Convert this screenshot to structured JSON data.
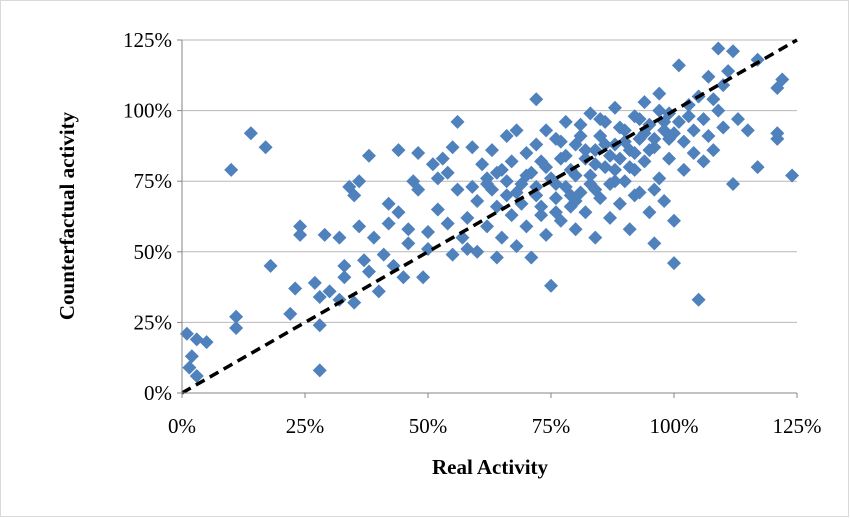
{
  "chart_data": {
    "type": "scatter",
    "xlabel": "Real Activity",
    "ylabel": "Counterfactual activity",
    "xlim": [
      0,
      1.25
    ],
    "ylim": [
      0,
      1.25
    ],
    "x_ticks": [
      "0%",
      "25%",
      "50%",
      "75%",
      "100%",
      "125%"
    ],
    "y_ticks": [
      "0%",
      "25%",
      "50%",
      "75%",
      "100%",
      "125%"
    ],
    "grid": "horizontal",
    "legend": "none",
    "colors": {
      "marker": "#4f81bd",
      "reference_line": "#000000",
      "grid": "#b8b8b8",
      "axis": "#868686"
    },
    "reference_line": {
      "style": "dashed",
      "from": [
        0,
        0
      ],
      "to": [
        1.25,
        1.25
      ]
    },
    "points": [
      [
        0.01,
        0.21
      ],
      [
        0.03,
        0.19
      ],
      [
        0.02,
        0.13
      ],
      [
        0.015,
        0.09
      ],
      [
        0.03,
        0.06
      ],
      [
        0.05,
        0.18
      ],
      [
        0.1,
        0.79
      ],
      [
        0.11,
        0.27
      ],
      [
        0.11,
        0.23
      ],
      [
        0.14,
        0.92
      ],
      [
        0.17,
        0.87
      ],
      [
        0.18,
        0.45
      ],
      [
        0.22,
        0.28
      ],
      [
        0.23,
        0.37
      ],
      [
        0.24,
        0.59
      ],
      [
        0.24,
        0.56
      ],
      [
        0.27,
        0.39
      ],
      [
        0.28,
        0.34
      ],
      [
        0.28,
        0.24
      ],
      [
        0.28,
        0.08
      ],
      [
        0.29,
        0.56
      ],
      [
        0.3,
        0.36
      ],
      [
        0.32,
        0.33
      ],
      [
        0.33,
        0.41
      ],
      [
        0.32,
        0.55
      ],
      [
        0.33,
        0.45
      ],
      [
        0.34,
        0.73
      ],
      [
        0.35,
        0.7
      ],
      [
        0.35,
        0.32
      ],
      [
        0.36,
        0.75
      ],
      [
        0.36,
        0.59
      ],
      [
        0.37,
        0.47
      ],
      [
        0.38,
        0.43
      ],
      [
        0.38,
        0.84
      ],
      [
        0.39,
        0.55
      ],
      [
        0.4,
        0.36
      ],
      [
        0.41,
        0.49
      ],
      [
        0.42,
        0.6
      ],
      [
        0.42,
        0.67
      ],
      [
        0.43,
        0.45
      ],
      [
        0.44,
        0.86
      ],
      [
        0.44,
        0.64
      ],
      [
        0.45,
        0.41
      ],
      [
        0.46,
        0.53
      ],
      [
        0.46,
        0.58
      ],
      [
        0.47,
        0.75
      ],
      [
        0.48,
        0.85
      ],
      [
        0.48,
        0.72
      ],
      [
        0.49,
        0.41
      ],
      [
        0.5,
        0.57
      ],
      [
        0.5,
        0.51
      ],
      [
        0.51,
        0.81
      ],
      [
        0.52,
        0.76
      ],
      [
        0.52,
        0.65
      ],
      [
        0.53,
        0.83
      ],
      [
        0.54,
        0.78
      ],
      [
        0.54,
        0.6
      ],
      [
        0.55,
        0.49
      ],
      [
        0.55,
        0.87
      ],
      [
        0.56,
        0.96
      ],
      [
        0.56,
        0.72
      ],
      [
        0.57,
        0.55
      ],
      [
        0.58,
        0.62
      ],
      [
        0.58,
        0.51
      ],
      [
        0.59,
        0.87
      ],
      [
        0.59,
        0.73
      ],
      [
        0.6,
        0.68
      ],
      [
        0.6,
        0.5
      ],
      [
        0.61,
        0.81
      ],
      [
        0.62,
        0.76
      ],
      [
        0.62,
        0.59
      ],
      [
        0.63,
        0.72
      ],
      [
        0.63,
        0.86
      ],
      [
        0.64,
        0.66
      ],
      [
        0.64,
        0.48
      ],
      [
        0.65,
        0.79
      ],
      [
        0.65,
        0.55
      ],
      [
        0.66,
        0.7
      ],
      [
        0.66,
        0.91
      ],
      [
        0.67,
        0.63
      ],
      [
        0.67,
        0.82
      ],
      [
        0.68,
        0.52
      ],
      [
        0.68,
        0.93
      ],
      [
        0.69,
        0.74
      ],
      [
        0.69,
        0.67
      ],
      [
        0.7,
        0.85
      ],
      [
        0.7,
        0.59
      ],
      [
        0.71,
        0.78
      ],
      [
        0.71,
        0.48
      ],
      [
        0.72,
        0.88
      ],
      [
        0.72,
        1.04
      ],
      [
        0.72,
        0.7
      ],
      [
        0.73,
        0.63
      ],
      [
        0.73,
        0.82
      ],
      [
        0.74,
        0.93
      ],
      [
        0.74,
        0.56
      ],
      [
        0.75,
        0.76
      ],
      [
        0.75,
        0.38
      ],
      [
        0.76,
        0.69
      ],
      [
        0.76,
        0.9
      ],
      [
        0.77,
        0.83
      ],
      [
        0.77,
        0.61
      ],
      [
        0.78,
        0.96
      ],
      [
        0.78,
        0.73
      ],
      [
        0.79,
        0.79
      ],
      [
        0.79,
        0.66
      ],
      [
        0.8,
        0.88
      ],
      [
        0.8,
        0.58
      ],
      [
        0.81,
        0.95
      ],
      [
        0.81,
        0.71
      ],
      [
        0.82,
        0.83
      ],
      [
        0.82,
        0.64
      ],
      [
        0.83,
        0.77
      ],
      [
        0.83,
        0.99
      ],
      [
        0.84,
        0.86
      ],
      [
        0.84,
        0.55
      ],
      [
        0.85,
        0.91
      ],
      [
        0.85,
        0.69
      ],
      [
        0.86,
        0.8
      ],
      [
        0.86,
        0.96
      ],
      [
        0.87,
        0.74
      ],
      [
        0.87,
        0.62
      ],
      [
        0.88,
        0.88
      ],
      [
        0.88,
        1.01
      ],
      [
        0.89,
        0.83
      ],
      [
        0.89,
        0.67
      ],
      [
        0.9,
        0.93
      ],
      [
        0.9,
        0.75
      ],
      [
        0.91,
        0.86
      ],
      [
        0.91,
        0.58
      ],
      [
        0.92,
        0.98
      ],
      [
        0.92,
        0.79
      ],
      [
        0.93,
        0.71
      ],
      [
        0.93,
        0.9
      ],
      [
        0.94,
        1.03
      ],
      [
        0.94,
        0.82
      ],
      [
        0.95,
        0.64
      ],
      [
        0.95,
        0.95
      ],
      [
        0.96,
        0.53
      ],
      [
        0.96,
        0.87
      ],
      [
        0.97,
        1.06
      ],
      [
        0.97,
        0.76
      ],
      [
        0.98,
        0.93
      ],
      [
        0.98,
        0.68
      ],
      [
        0.99,
        0.99
      ],
      [
        0.99,
        0.83
      ],
      [
        1.0,
        0.61
      ],
      [
        1.0,
        0.46
      ],
      [
        1.01,
        0.96
      ],
      [
        1.01,
        1.16
      ],
      [
        1.02,
        0.89
      ],
      [
        1.02,
        0.79
      ],
      [
        1.03,
        1.02
      ],
      [
        1.04,
        0.93
      ],
      [
        1.04,
        0.85
      ],
      [
        1.05,
        1.05
      ],
      [
        1.05,
        0.33
      ],
      [
        1.06,
        0.97
      ],
      [
        1.06,
        0.82
      ],
      [
        1.07,
        1.12
      ],
      [
        1.07,
        0.91
      ],
      [
        1.08,
        1.04
      ],
      [
        1.08,
        0.86
      ],
      [
        1.09,
        1.22
      ],
      [
        1.09,
        1.0
      ],
      [
        1.1,
        0.94
      ],
      [
        1.1,
        1.09
      ],
      [
        1.11,
        1.14
      ],
      [
        1.12,
        0.74
      ],
      [
        1.12,
        1.21
      ],
      [
        1.13,
        0.97
      ],
      [
        1.15,
        0.93
      ],
      [
        1.17,
        0.8
      ],
      [
        1.17,
        1.18
      ],
      [
        1.21,
        0.9
      ],
      [
        1.21,
        0.92
      ],
      [
        1.21,
        1.08
      ],
      [
        1.22,
        1.11
      ],
      [
        1.24,
        0.77
      ],
      [
        0.62,
        0.74
      ],
      [
        0.64,
        0.78
      ],
      [
        0.66,
        0.75
      ],
      [
        0.68,
        0.71
      ],
      [
        0.7,
        0.77
      ],
      [
        0.72,
        0.73
      ],
      [
        0.74,
        0.8
      ],
      [
        0.76,
        0.74
      ],
      [
        0.78,
        0.84
      ],
      [
        0.8,
        0.77
      ],
      [
        0.82,
        0.86
      ],
      [
        0.84,
        0.81
      ],
      [
        0.86,
        0.88
      ],
      [
        0.88,
        0.79
      ],
      [
        0.9,
        0.89
      ],
      [
        0.92,
        0.85
      ],
      [
        0.94,
        0.92
      ],
      [
        0.96,
        0.9
      ],
      [
        0.98,
        0.96
      ],
      [
        1.0,
        0.92
      ],
      [
        0.79,
        0.7
      ],
      [
        0.83,
        0.74
      ],
      [
        0.87,
        0.84
      ],
      [
        0.91,
        0.8
      ],
      [
        0.95,
        0.86
      ],
      [
        0.99,
        0.9
      ],
      [
        1.03,
        0.98
      ],
      [
        0.73,
        0.66
      ],
      [
        0.77,
        0.89
      ],
      [
        0.81,
        0.91
      ],
      [
        0.85,
        0.97
      ],
      [
        0.89,
        0.94
      ],
      [
        0.93,
        0.97
      ],
      [
        0.97,
        1.0
      ],
      [
        0.76,
        0.64
      ],
      [
        0.8,
        0.68
      ],
      [
        0.84,
        0.72
      ],
      [
        0.88,
        0.75
      ],
      [
        0.92,
        0.7
      ],
      [
        0.96,
        0.72
      ]
    ]
  }
}
